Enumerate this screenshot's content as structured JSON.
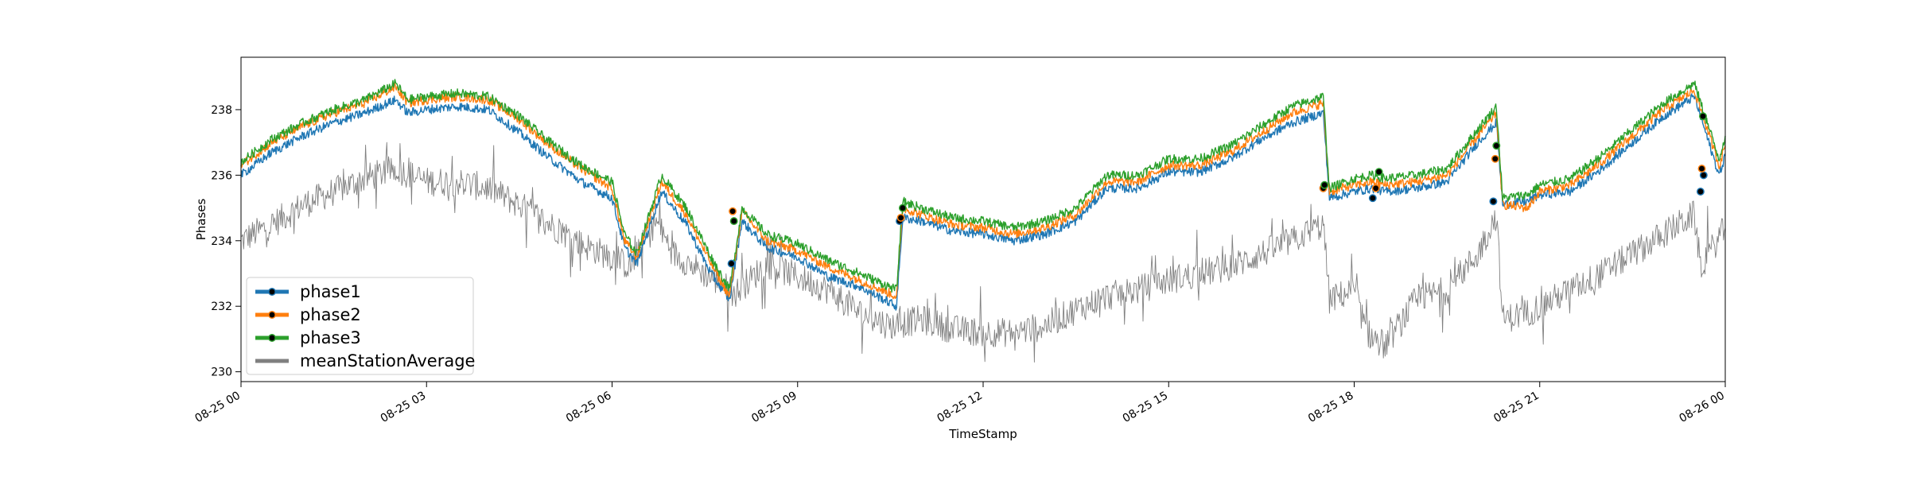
{
  "chart_data": {
    "type": "line",
    "xlabel": "TimeStamp",
    "ylabel": "Phases",
    "x_range": [
      "2019-08-25T00:00",
      "2019-08-26T00:00"
    ],
    "x_ticks": [
      "08-25 00",
      "08-25 03",
      "08-25 06",
      "08-25 09",
      "08-25 12",
      "08-25 15",
      "08-25 18",
      "08-25 21",
      "08-26 00"
    ],
    "ylim": [
      229.7,
      239.6
    ],
    "y_ticks": [
      230,
      232,
      234,
      236,
      238
    ],
    "grid": false,
    "legend_position": "lower-left",
    "series": [
      {
        "name": "phase1",
        "color": "#1f77b4",
        "hours": [
          0,
          0.5,
          1,
          1.5,
          2,
          2.5,
          2.7,
          3,
          3.5,
          4,
          4.5,
          5,
          5.5,
          6,
          6.2,
          6.4,
          6.8,
          7.2,
          7.6,
          7.9,
          8.1,
          8.5,
          9,
          9.5,
          10,
          10.6,
          10.7,
          11,
          11.5,
          12,
          12.5,
          13,
          13.5,
          14,
          14.5,
          15,
          15.5,
          16,
          16.5,
          17,
          17.5,
          17.6,
          18,
          18.3,
          18.5,
          19,
          19.5,
          20,
          20.3,
          20.4,
          20.8,
          21,
          21.5,
          22,
          22.5,
          23,
          23.5,
          23.9,
          24
        ],
        "values": [
          236.0,
          236.7,
          237.2,
          237.6,
          237.9,
          238.3,
          237.9,
          238.0,
          238.1,
          238.0,
          237.3,
          236.5,
          235.8,
          235.3,
          233.8,
          233.3,
          235.5,
          234.5,
          233.0,
          232.2,
          234.6,
          233.8,
          233.5,
          232.9,
          232.6,
          232.0,
          234.7,
          234.6,
          234.3,
          234.2,
          234.0,
          234.2,
          234.6,
          235.6,
          235.6,
          236.1,
          236.1,
          236.5,
          237.1,
          237.6,
          237.9,
          235.3,
          235.5,
          235.6,
          235.5,
          235.6,
          235.8,
          237.0,
          237.6,
          235.1,
          235.2,
          235.4,
          235.5,
          236.2,
          237.0,
          237.8,
          238.4,
          236.0,
          236.6
        ]
      },
      {
        "name": "phase2",
        "color": "#ff7f0e",
        "hours": [
          0,
          0.5,
          1,
          1.5,
          2,
          2.5,
          2.7,
          3,
          3.5,
          4,
          4.5,
          5,
          5.5,
          6,
          6.2,
          6.4,
          6.8,
          7.2,
          7.6,
          7.9,
          8.1,
          8.5,
          9,
          9.5,
          10,
          10.6,
          10.7,
          11,
          11.5,
          12,
          12.5,
          13,
          13.5,
          14,
          14.5,
          15,
          15.5,
          16,
          16.5,
          17,
          17.5,
          17.6,
          18,
          18.3,
          18.5,
          19,
          19.5,
          20,
          20.3,
          20.4,
          20.8,
          21,
          21.5,
          22,
          22.5,
          23,
          23.5,
          23.9,
          24
        ],
        "values": [
          236.3,
          237.0,
          237.5,
          237.9,
          238.2,
          238.7,
          238.2,
          238.3,
          238.4,
          238.3,
          237.7,
          236.9,
          236.2,
          235.6,
          234.0,
          233.5,
          235.8,
          234.8,
          233.3,
          232.3,
          234.9,
          234.0,
          233.7,
          233.2,
          232.8,
          232.3,
          235.0,
          234.8,
          234.5,
          234.4,
          234.2,
          234.4,
          234.8,
          235.8,
          235.8,
          236.3,
          236.3,
          236.7,
          237.3,
          237.9,
          238.2,
          235.5,
          235.7,
          235.8,
          235.7,
          235.8,
          236.0,
          237.2,
          237.9,
          235.1,
          235.0,
          235.5,
          235.7,
          236.4,
          237.2,
          238.0,
          238.6,
          236.3,
          236.9
        ]
      },
      {
        "name": "phase3",
        "color": "#2ca02c",
        "hours": [
          0,
          0.5,
          1,
          1.5,
          2,
          2.5,
          2.7,
          3,
          3.5,
          4,
          4.5,
          5,
          5.5,
          6,
          6.2,
          6.4,
          6.8,
          7.2,
          7.6,
          7.9,
          8.1,
          8.5,
          9,
          9.5,
          10,
          10.6,
          10.7,
          11,
          11.5,
          12,
          12.5,
          13,
          13.5,
          14,
          14.5,
          15,
          15.5,
          16,
          16.5,
          17,
          17.5,
          17.6,
          18,
          18.3,
          18.5,
          19,
          19.5,
          20,
          20.3,
          20.4,
          20.8,
          21,
          21.5,
          22,
          22.5,
          23,
          23.5,
          23.9,
          24
        ],
        "values": [
          236.4,
          237.1,
          237.6,
          238.0,
          238.3,
          238.8,
          238.3,
          238.4,
          238.5,
          238.4,
          237.8,
          237.0,
          236.3,
          235.8,
          234.2,
          233.6,
          236.0,
          235.0,
          233.5,
          232.5,
          235.0,
          234.2,
          233.9,
          233.4,
          233.0,
          232.5,
          235.2,
          235.0,
          234.7,
          234.6,
          234.4,
          234.6,
          235.0,
          236.0,
          236.0,
          236.5,
          236.5,
          236.9,
          237.5,
          238.1,
          238.4,
          235.6,
          235.9,
          236.0,
          235.9,
          236.0,
          236.2,
          237.4,
          238.1,
          235.3,
          235.4,
          235.7,
          235.9,
          236.6,
          237.4,
          238.2,
          238.8,
          236.5,
          237.2
        ]
      },
      {
        "name": "meanStationAverage",
        "color": "#808080",
        "hours": [
          0,
          0.5,
          1,
          1.5,
          2,
          2.5,
          3,
          3.5,
          4,
          4.5,
          5,
          5.5,
          6,
          6.3,
          6.7,
          7,
          7.5,
          8,
          8.5,
          9,
          9.5,
          10,
          10.5,
          11,
          11.5,
          12,
          12.5,
          13,
          13.5,
          14,
          14.5,
          15,
          15.5,
          16,
          16.5,
          17,
          17.5,
          17.6,
          18,
          18.2,
          18.5,
          19,
          19.5,
          20,
          20.3,
          20.4,
          20.8,
          21,
          21.5,
          22,
          22.5,
          23,
          23.5,
          23.6,
          24
        ],
        "values": [
          234.0,
          234.5,
          235.1,
          235.5,
          235.9,
          236.2,
          235.8,
          235.8,
          235.6,
          235.1,
          234.5,
          233.9,
          233.5,
          233.2,
          234.6,
          233.6,
          233.0,
          232.4,
          233.3,
          232.9,
          232.5,
          231.8,
          231.4,
          231.6,
          231.3,
          231.2,
          231.2,
          231.4,
          231.9,
          232.3,
          232.5,
          232.8,
          233.0,
          233.2,
          233.6,
          234.0,
          234.5,
          232.2,
          232.5,
          231.2,
          230.8,
          232.2,
          232.5,
          233.6,
          234.8,
          231.6,
          231.8,
          232.0,
          232.5,
          233.0,
          233.6,
          234.2,
          234.8,
          233.2,
          234.4
        ]
      }
    ],
    "markers": {
      "phase1": {
        "hours": [
          7.93,
          10.65,
          17.5,
          18.3,
          20.25,
          23.6,
          23.65
        ],
        "values": [
          233.3,
          234.6,
          235.6,
          235.3,
          235.2,
          235.5,
          236.0
        ]
      },
      "phase2": {
        "hours": [
          7.95,
          10.67,
          17.5,
          18.35,
          20.28,
          23.62
        ],
        "values": [
          234.9,
          234.7,
          235.6,
          235.6,
          236.5,
          236.2
        ]
      },
      "phase3": {
        "hours": [
          7.97,
          10.7,
          17.52,
          18.4,
          20.3,
          23.64
        ],
        "values": [
          234.6,
          235.0,
          235.7,
          236.1,
          236.9,
          237.8
        ]
      }
    }
  }
}
